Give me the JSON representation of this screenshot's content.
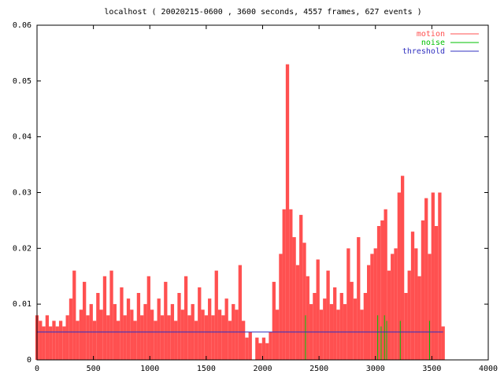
{
  "chart_data": {
    "type": "impulse",
    "title": "localhost ( 20020215-0600 , 3600 seconds, 4557 frames, 627 events )",
    "xlim": [
      0,
      4000
    ],
    "xticks": [
      0,
      500,
      1000,
      1500,
      2000,
      2500,
      3000,
      3500,
      4000
    ],
    "ylim": [
      0,
      0.06
    ],
    "yticks": [
      0,
      0.01,
      0.02,
      0.03,
      0.04,
      0.05,
      0.06
    ],
    "legend": "top-right",
    "series": [
      {
        "name": "motion",
        "type": "impulse",
        "color": "#ff5050",
        "x": [
          0,
          30,
          60,
          90,
          120,
          150,
          180,
          210,
          240,
          270,
          300,
          330,
          360,
          390,
          420,
          450,
          480,
          510,
          540,
          570,
          600,
          630,
          660,
          690,
          720,
          750,
          780,
          810,
          840,
          870,
          900,
          930,
          960,
          990,
          1020,
          1050,
          1080,
          1110,
          1140,
          1170,
          1200,
          1230,
          1260,
          1290,
          1320,
          1350,
          1380,
          1410,
          1440,
          1470,
          1500,
          1530,
          1560,
          1590,
          1620,
          1650,
          1680,
          1710,
          1740,
          1770,
          1800,
          1830,
          1860,
          1890,
          1920,
          1950,
          1980,
          2010,
          2040,
          2070,
          2100,
          2130,
          2160,
          2190,
          2220,
          2250,
          2280,
          2310,
          2340,
          2370,
          2400,
          2430,
          2460,
          2490,
          2520,
          2550,
          2580,
          2610,
          2640,
          2670,
          2700,
          2730,
          2760,
          2790,
          2820,
          2850,
          2880,
          2910,
          2940,
          2970,
          3000,
          3030,
          3060,
          3090,
          3120,
          3150,
          3180,
          3210,
          3240,
          3270,
          3300,
          3330,
          3360,
          3390,
          3420,
          3450,
          3480,
          3510,
          3540,
          3570,
          3600
        ],
        "values": [
          0.008,
          0.007,
          0.006,
          0.008,
          0.006,
          0.007,
          0.006,
          0.007,
          0.006,
          0.008,
          0.011,
          0.016,
          0.007,
          0.009,
          0.014,
          0.008,
          0.01,
          0.007,
          0.012,
          0.009,
          0.015,
          0.008,
          0.016,
          0.01,
          0.007,
          0.013,
          0.008,
          0.011,
          0.009,
          0.007,
          0.012,
          0.008,
          0.01,
          0.015,
          0.009,
          0.007,
          0.011,
          0.008,
          0.014,
          0.008,
          0.01,
          0.007,
          0.012,
          0.009,
          0.015,
          0.008,
          0.01,
          0.007,
          0.013,
          0.009,
          0.008,
          0.011,
          0.008,
          0.016,
          0.009,
          0.008,
          0.011,
          0.007,
          0.01,
          0.009,
          0.017,
          0.007,
          0.004,
          0.005,
          0,
          0.004,
          0.003,
          0.004,
          0.003,
          0.005,
          0.014,
          0.009,
          0.019,
          0.027,
          0.053,
          0.027,
          0.022,
          0.017,
          0.026,
          0.021,
          0.015,
          0.01,
          0.012,
          0.018,
          0.009,
          0.011,
          0.016,
          0.01,
          0.013,
          0.009,
          0.012,
          0.01,
          0.02,
          0.014,
          0.011,
          0.022,
          0.009,
          0.012,
          0.017,
          0.019,
          0.02,
          0.024,
          0.025,
          0.027,
          0.016,
          0.019,
          0.02,
          0.03,
          0.033,
          0.012,
          0.016,
          0.023,
          0.02,
          0.015,
          0.025,
          0.029,
          0.019,
          0.03,
          0.024,
          0.03,
          0.006
        ]
      },
      {
        "name": "noise",
        "type": "impulse",
        "color": "#00c000",
        "x": [
          2380,
          3020,
          3050,
          3080,
          3100,
          3220,
          3480
        ],
        "values": [
          0.008,
          0.008,
          0.006,
          0.008,
          0.007,
          0.007,
          0.007
        ]
      },
      {
        "name": "threshold",
        "type": "line",
        "color": "#3030c0",
        "x": [
          0,
          3600
        ],
        "values": [
          0.005,
          0.005
        ]
      }
    ]
  }
}
